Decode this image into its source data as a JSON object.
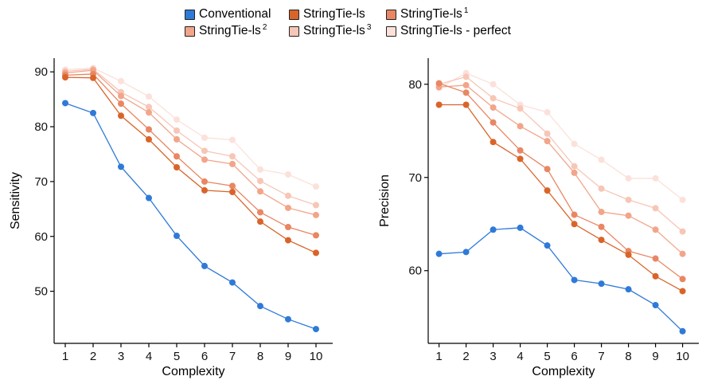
{
  "legend": {
    "items": [
      {
        "label": "Conventional",
        "sup": "",
        "color": "#2f7ad8"
      },
      {
        "label": "StringTie-ls",
        "sup": "",
        "color": "#d9642a"
      },
      {
        "label": "StringTie-ls",
        "sup": "1",
        "color": "#e98663"
      },
      {
        "label": "StringTie-ls",
        "sup": "2",
        "color": "#f2a58a"
      },
      {
        "label": "StringTie-ls",
        "sup": "3",
        "color": "#f7c6b7"
      },
      {
        "label": "StringTie-ls - perfect",
        "sup": "",
        "color": "#fbe1da"
      }
    ]
  },
  "chart_data": [
    {
      "type": "line",
      "xlabel": "Complexity",
      "ylabel": "Sensitivity",
      "x": [
        1,
        2,
        3,
        4,
        5,
        6,
        7,
        8,
        9,
        10
      ],
      "xlim": [
        0.6,
        10.6
      ],
      "ylim": [
        40.5,
        92.5
      ],
      "yticks": [
        50,
        60,
        70,
        80,
        90
      ],
      "grid": false,
      "legend_position": "top",
      "series": [
        {
          "name": "StringTie-ls - perfect",
          "color": "#fbe1da",
          "values": [
            90.4,
            90.7,
            88.3,
            85.5,
            81.3,
            78.0,
            77.6,
            72.2,
            71.3,
            69.1
          ]
        },
        {
          "name": "StringTie-ls 3",
          "color": "#f7c6b7",
          "values": [
            90.1,
            90.5,
            86.3,
            83.6,
            79.3,
            75.6,
            74.6,
            70.1,
            67.4,
            65.7
          ]
        },
        {
          "name": "StringTie-ls 2",
          "color": "#f2a58a",
          "values": [
            89.8,
            90.3,
            85.6,
            82.6,
            77.7,
            74.0,
            73.2,
            68.2,
            65.2,
            63.9
          ]
        },
        {
          "name": "StringTie-ls 1",
          "color": "#e98663",
          "values": [
            89.4,
            89.6,
            84.2,
            79.5,
            74.6,
            70.0,
            69.2,
            64.4,
            61.7,
            60.2
          ]
        },
        {
          "name": "StringTie-ls",
          "color": "#d9642a",
          "values": [
            89.0,
            88.9,
            82.0,
            77.7,
            72.6,
            68.4,
            68.1,
            62.7,
            59.3,
            57.0
          ]
        },
        {
          "name": "Conventional",
          "color": "#2f7ad8",
          "values": [
            84.3,
            82.5,
            72.7,
            67.0,
            60.1,
            54.6,
            51.6,
            47.3,
            44.9,
            43.1
          ]
        }
      ]
    },
    {
      "type": "line",
      "xlabel": "Complexity",
      "ylabel": "Precision",
      "x": [
        1,
        2,
        3,
        4,
        5,
        6,
        7,
        8,
        9,
        10
      ],
      "xlim": [
        0.6,
        10.6
      ],
      "ylim": [
        52.2,
        82.8
      ],
      "yticks": [
        60,
        70,
        80
      ],
      "grid": false,
      "legend_position": "top",
      "series": [
        {
          "name": "StringTie-ls - perfect",
          "color": "#fbe1da",
          "values": [
            79.6,
            81.2,
            80.0,
            77.8,
            77.0,
            73.6,
            71.9,
            69.9,
            69.9,
            67.6
          ]
        },
        {
          "name": "StringTie-ls 3",
          "color": "#f7c6b7",
          "values": [
            80.0,
            80.8,
            78.5,
            77.4,
            74.7,
            71.2,
            68.8,
            67.6,
            66.7,
            64.2
          ]
        },
        {
          "name": "StringTie-ls 2",
          "color": "#f2a58a",
          "values": [
            79.7,
            79.9,
            77.5,
            75.5,
            73.9,
            70.5,
            66.3,
            65.9,
            64.4,
            61.8
          ]
        },
        {
          "name": "StringTie-ls 1",
          "color": "#e98663",
          "values": [
            80.1,
            79.1,
            75.9,
            72.9,
            70.9,
            66.0,
            64.7,
            62.1,
            61.3,
            59.1
          ]
        },
        {
          "name": "StringTie-ls",
          "color": "#d9642a",
          "values": [
            77.8,
            77.8,
            73.8,
            72.0,
            68.6,
            65.0,
            63.3,
            61.7,
            59.4,
            57.8
          ]
        },
        {
          "name": "Conventional",
          "color": "#2f7ad8",
          "values": [
            61.8,
            62.0,
            64.4,
            64.6,
            62.7,
            59.0,
            58.6,
            58.0,
            56.3,
            53.5
          ]
        }
      ]
    }
  ]
}
